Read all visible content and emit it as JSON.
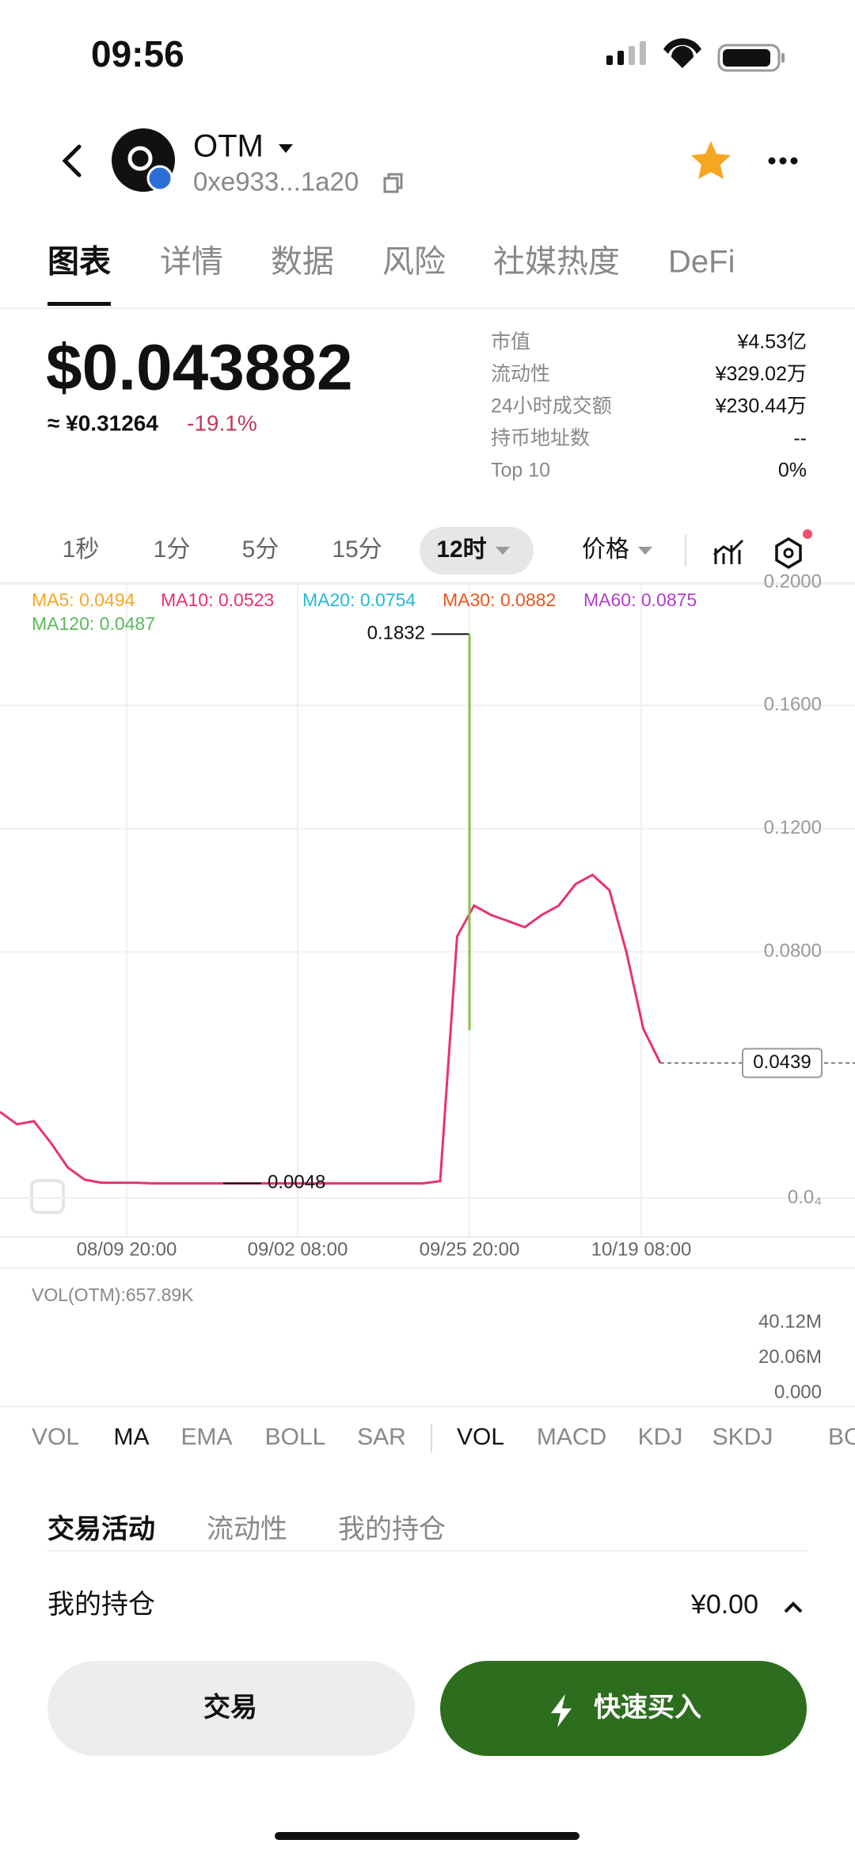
{
  "status": {
    "time": "09:56"
  },
  "header": {
    "name": "OTM",
    "address": "0xe933...1a20"
  },
  "tabs": [
    "图表",
    "详情",
    "数据",
    "风险",
    "社媒热度",
    "DeFi"
  ],
  "price": {
    "usd": "$0.043882",
    "cny": "≈ ¥0.31264",
    "change": "-19.1%"
  },
  "stats": [
    {
      "label": "市值",
      "value": "¥4.53亿"
    },
    {
      "label": "流动性",
      "value": "¥329.02万"
    },
    {
      "label": "24小时成交额",
      "value": "¥230.44万"
    },
    {
      "label": "持币地址数",
      "value": "--"
    },
    {
      "label": "Top 10",
      "value": "0%"
    }
  ],
  "intervals": [
    "1秒",
    "1分",
    "5分",
    "15分",
    "12时"
  ],
  "price_mode": "价格",
  "chart": {
    "ma_legend": [
      {
        "text": "MA5: 0.0494",
        "color": "#f5a623"
      },
      {
        "text": "MA10: 0.0523",
        "color": "#e8336d"
      },
      {
        "text": "MA20: 0.0754",
        "color": "#22b8d6"
      },
      {
        "text": "MA30: 0.0882",
        "color": "#e8571c"
      },
      {
        "text": "MA60: 0.0875",
        "color": "#b23fc7"
      },
      {
        "text": "MA120: 0.0487",
        "color": "#5cb85c"
      }
    ],
    "ylim": [
      0,
      0.2
    ],
    "yticks": [
      {
        "value": 0.2,
        "label": "0.2000"
      },
      {
        "value": 0.16,
        "label": "0.1600"
      },
      {
        "value": 0.12,
        "label": "0.1200"
      },
      {
        "value": 0.08,
        "label": "0.0800"
      },
      {
        "value": 0,
        "label": "0.0₄"
      }
    ],
    "xticks": [
      "08/09 20:00",
      "09/02 08:00",
      "09/25 20:00",
      "10/19 08:00"
    ],
    "color": "#e8336d",
    "close": [
      0.028,
      0.024,
      0.025,
      0.018,
      0.01,
      0.006,
      0.005,
      0.005,
      0.005,
      0.0048,
      0.0048,
      0.0048,
      0.0048,
      0.0048,
      0.0048,
      0.0048,
      0.0048,
      0.0048,
      0.0048,
      0.0048,
      0.0048,
      0.0048,
      0.0048,
      0.0048,
      0.0048,
      0.0048,
      0.0055,
      0.085,
      0.095,
      0.092,
      0.09,
      0.088,
      0.092,
      0.095,
      0.102,
      0.105,
      0.1,
      0.08,
      0.055,
      0.0439
    ],
    "high": 0.1832,
    "low": 0.0048,
    "current": 0.0439
  },
  "volume": {
    "label": "VOL(OTM):657.89K",
    "ylim": [
      0,
      40120000
    ],
    "yticks": [
      {
        "value": 40120000,
        "label": "40.12M"
      },
      {
        "value": 20060000,
        "label": "20.06M"
      },
      {
        "value": 0,
        "label": "0.000"
      }
    ]
  },
  "indicators": [
    "VOL",
    "MA",
    "EMA",
    "BOLL",
    "SAR",
    "VOL",
    "MACD",
    "KDJ",
    "SKDJ",
    "BOLL"
  ],
  "activity_tabs": [
    "交易活动",
    "流动性",
    "我的持仓"
  ],
  "holdings": {
    "label": "我的持仓",
    "value": "¥0.00"
  },
  "buttons": {
    "trade": "交易",
    "quick_buy": "快速买入"
  }
}
